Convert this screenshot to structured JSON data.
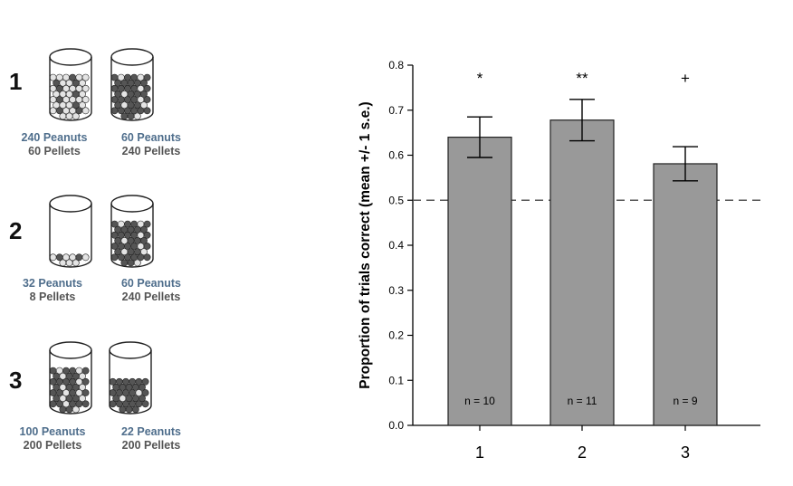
{
  "conditions": [
    {
      "label": "1",
      "left": {
        "peanuts": "240 Peanuts",
        "pellets": "60 Pellets",
        "fill_level": 0.65,
        "peanut_ratio": 0.8
      },
      "right": {
        "peanuts": "60 Peanuts",
        "pellets": "240 Pellets",
        "fill_level": 0.65,
        "peanut_ratio": 0.2
      }
    },
    {
      "label": "2",
      "left": {
        "peanuts": "32 Peanuts",
        "pellets": "8 Pellets",
        "fill_level": 0.12,
        "peanut_ratio": 0.8
      },
      "right": {
        "peanuts": "60 Peanuts",
        "pellets": "240 Pellets",
        "fill_level": 0.65,
        "peanut_ratio": 0.2
      }
    },
    {
      "label": "3",
      "left": {
        "peanuts": "100 Peanuts",
        "pellets": "200 Pellets",
        "fill_level": 0.65,
        "peanut_ratio": 0.33
      },
      "right": {
        "peanuts": "22 Peanuts",
        "pellets": "200 Pellets",
        "fill_level": 0.5,
        "peanut_ratio": 0.1
      }
    }
  ],
  "colors": {
    "bar": "#999999",
    "peanut": "#e4e4e4",
    "pellet": "#555555",
    "caption_peanut": "#4f6e8c",
    "caption_pellet": "#555555"
  },
  "chart_data": {
    "type": "bar",
    "categories": [
      "1",
      "2",
      "3"
    ],
    "values": [
      0.64,
      0.678,
      0.581
    ],
    "error": [
      0.045,
      0.046,
      0.038
    ],
    "significance": [
      "*",
      "**",
      "+"
    ],
    "n_labels": [
      "n = 10",
      "n = 11",
      "n = 9"
    ],
    "ylabel": "Proportion of trials correct (mean +/- 1 s.e.)",
    "xlabel": "",
    "ylim": [
      0,
      0.8
    ],
    "yticks": [
      "0.0",
      "0.1",
      "0.2",
      "0.3",
      "0.4",
      "0.5",
      "0.6",
      "0.7",
      "0.8"
    ],
    "reference_line": 0.5,
    "grid": false
  }
}
